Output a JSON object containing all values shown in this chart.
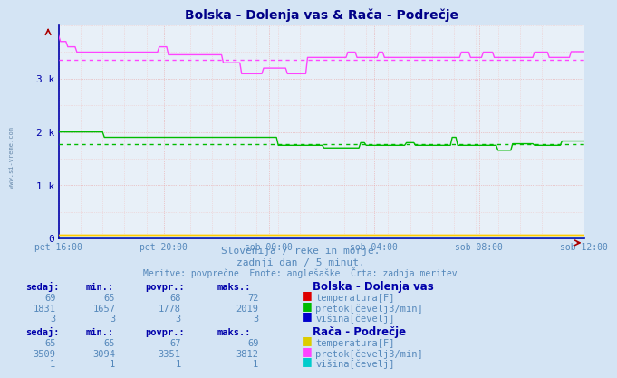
{
  "title": "Bolska - Dolenja vas & Rača - Podrečje",
  "subtitle1": "Slovenija / reke in morje.",
  "subtitle2": "zadnji dan / 5 minut.",
  "subtitle3": "Meritve: povprečne  Enote: anglešaške  Črta: zadnja meritev",
  "xlabel_ticks": [
    "pet 16:00",
    "pet 20:00",
    "sob 00:00",
    "sob 04:00",
    "sob 08:00",
    "sob 12:00"
  ],
  "ytick_labels": [
    "0",
    "1 k",
    "2 k",
    "3 k"
  ],
  "ytick_values": [
    0,
    1000,
    2000,
    3000
  ],
  "ymax": 4000,
  "bg_color": "#d4e4f4",
  "plot_bg_color": "#e8f0f8",
  "grid_color_major": "#e8a0a0",
  "grid_color_minor": "#f0c8c8",
  "axis_color": "#0000aa",
  "line_bolska_pretok_color": "#00bb00",
  "line_raca_pretok_color": "#ff44ff",
  "line_bolska_temp_color": "#ffcc00",
  "line_raca_temp_color": "#ffcc00",
  "line_bolska_visina_color": "#0000ff",
  "line_raca_visina_color": "#00cccc",
  "bolska_pretok_avg": 1778,
  "raca_pretok_avg": 3351,
  "bolska_temp_avg": 68,
  "raca_temp_avg": 67,
  "n_points": 288,
  "text_color": "#5588bb",
  "header_color": "#0000aa",
  "table_data": {
    "bolska": {
      "name": "Bolska - Dolenja vas",
      "temp": {
        "sedaj": 69,
        "min": 65,
        "povpr": 68,
        "maks": 72,
        "color": "#dd0000",
        "label": "temperatura[F]"
      },
      "pretok": {
        "sedaj": 1831,
        "min": 1657,
        "povpr": 1778,
        "maks": 2019,
        "color": "#00bb00",
        "label": "pretok[čevelj3/min]"
      },
      "visina": {
        "sedaj": 3,
        "min": 3,
        "povpr": 3,
        "maks": 3,
        "color": "#0000cc",
        "label": "višina[čevelj]"
      }
    },
    "raca": {
      "name": "Rača - Podrečje",
      "temp": {
        "sedaj": 65,
        "min": 65,
        "povpr": 67,
        "maks": 69,
        "color": "#ddcc00",
        "label": "temperatura[F]"
      },
      "pretok": {
        "sedaj": 3509,
        "min": 3094,
        "povpr": 3351,
        "maks": 3812,
        "color": "#ff44ff",
        "label": "pretok[čevelj3/min]"
      },
      "visina": {
        "sedaj": 1,
        "min": 1,
        "povpr": 1,
        "maks": 1,
        "color": "#00cccc",
        "label": "višina[čevelj]"
      }
    }
  }
}
